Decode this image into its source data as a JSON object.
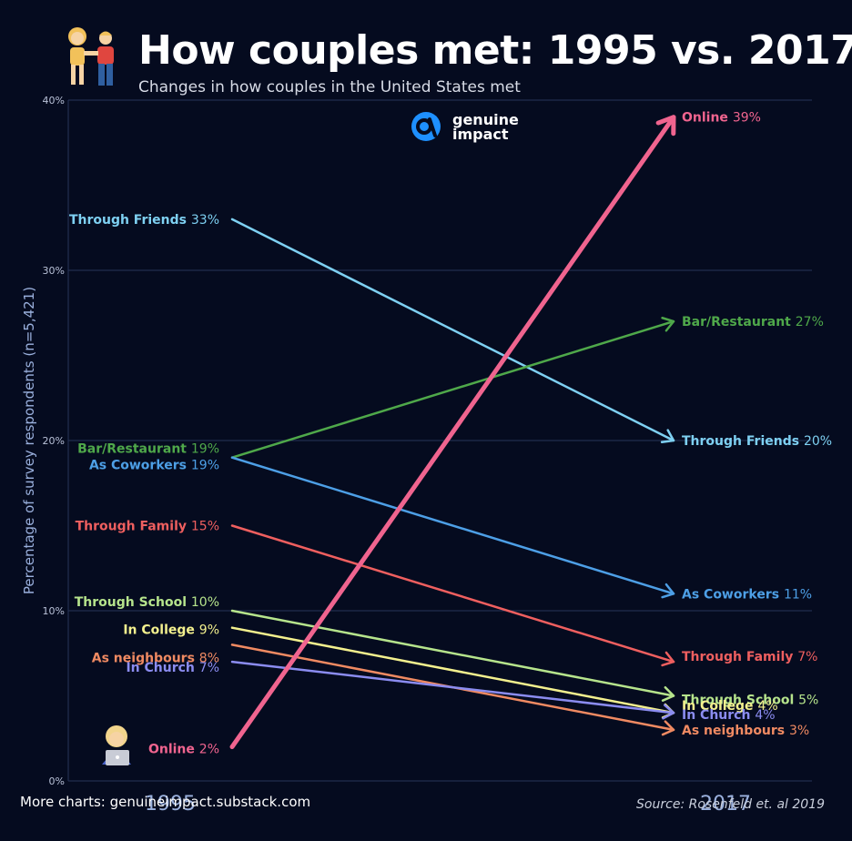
{
  "header": {
    "title": "How couples met: 1995 vs. 2017",
    "subtitle": "Changes in how couples in the United States met"
  },
  "logo": {
    "line1": "genuine",
    "line2": "impact"
  },
  "footer": {
    "left": "More charts: genuineimpact.substack.com",
    "right": "Source: Rosenfeld et. al 2019"
  },
  "colors": {
    "background": "#050b1f",
    "grid": "#26345a",
    "logo": "#1e90ff"
  },
  "chart_data": {
    "type": "line",
    "chart_style": "slope",
    "categories": [
      "1995",
      "2017"
    ],
    "ylabel": "Percentage of survey respondents (n=5,421)",
    "ylim": [
      0,
      40
    ],
    "yticks": [
      0,
      10,
      20,
      30,
      40
    ],
    "ytick_labels": [
      "0%",
      "10%",
      "20%",
      "30%",
      "40%"
    ],
    "grid": true,
    "series": [
      {
        "name": "Online",
        "values": [
          2,
          39
        ],
        "labels": [
          "2%",
          "39%"
        ],
        "color": "#f0648f",
        "highlight": true
      },
      {
        "name": "Through Friends",
        "values": [
          33,
          20
        ],
        "labels": [
          "33%",
          "20%"
        ],
        "color": "#7ed0f2"
      },
      {
        "name": "Bar/Restaurant",
        "values": [
          19,
          27
        ],
        "labels": [
          "19%",
          "27%"
        ],
        "color": "#4fa84a"
      },
      {
        "name": "As Coworkers",
        "values": [
          19,
          11
        ],
        "labels": [
          "19%",
          "11%"
        ],
        "color": "#4d9fe6"
      },
      {
        "name": "Through Family",
        "values": [
          15,
          7
        ],
        "labels": [
          "15%",
          "7%"
        ],
        "color": "#ef5f5f"
      },
      {
        "name": "Through School",
        "values": [
          10,
          5
        ],
        "labels": [
          "10%",
          "5%"
        ],
        "color": "#b6e48c"
      },
      {
        "name": "In College",
        "values": [
          9,
          4
        ],
        "labels": [
          "9%",
          "4%"
        ],
        "color": "#f3f08e"
      },
      {
        "name": "As neighbours",
        "values": [
          8,
          3
        ],
        "labels": [
          "8%",
          "3%"
        ],
        "color": "#f08a62"
      },
      {
        "name": "In Church",
        "values": [
          7,
          4
        ],
        "labels": [
          "7%",
          "4%"
        ],
        "color": "#8b8cf0"
      }
    ]
  }
}
